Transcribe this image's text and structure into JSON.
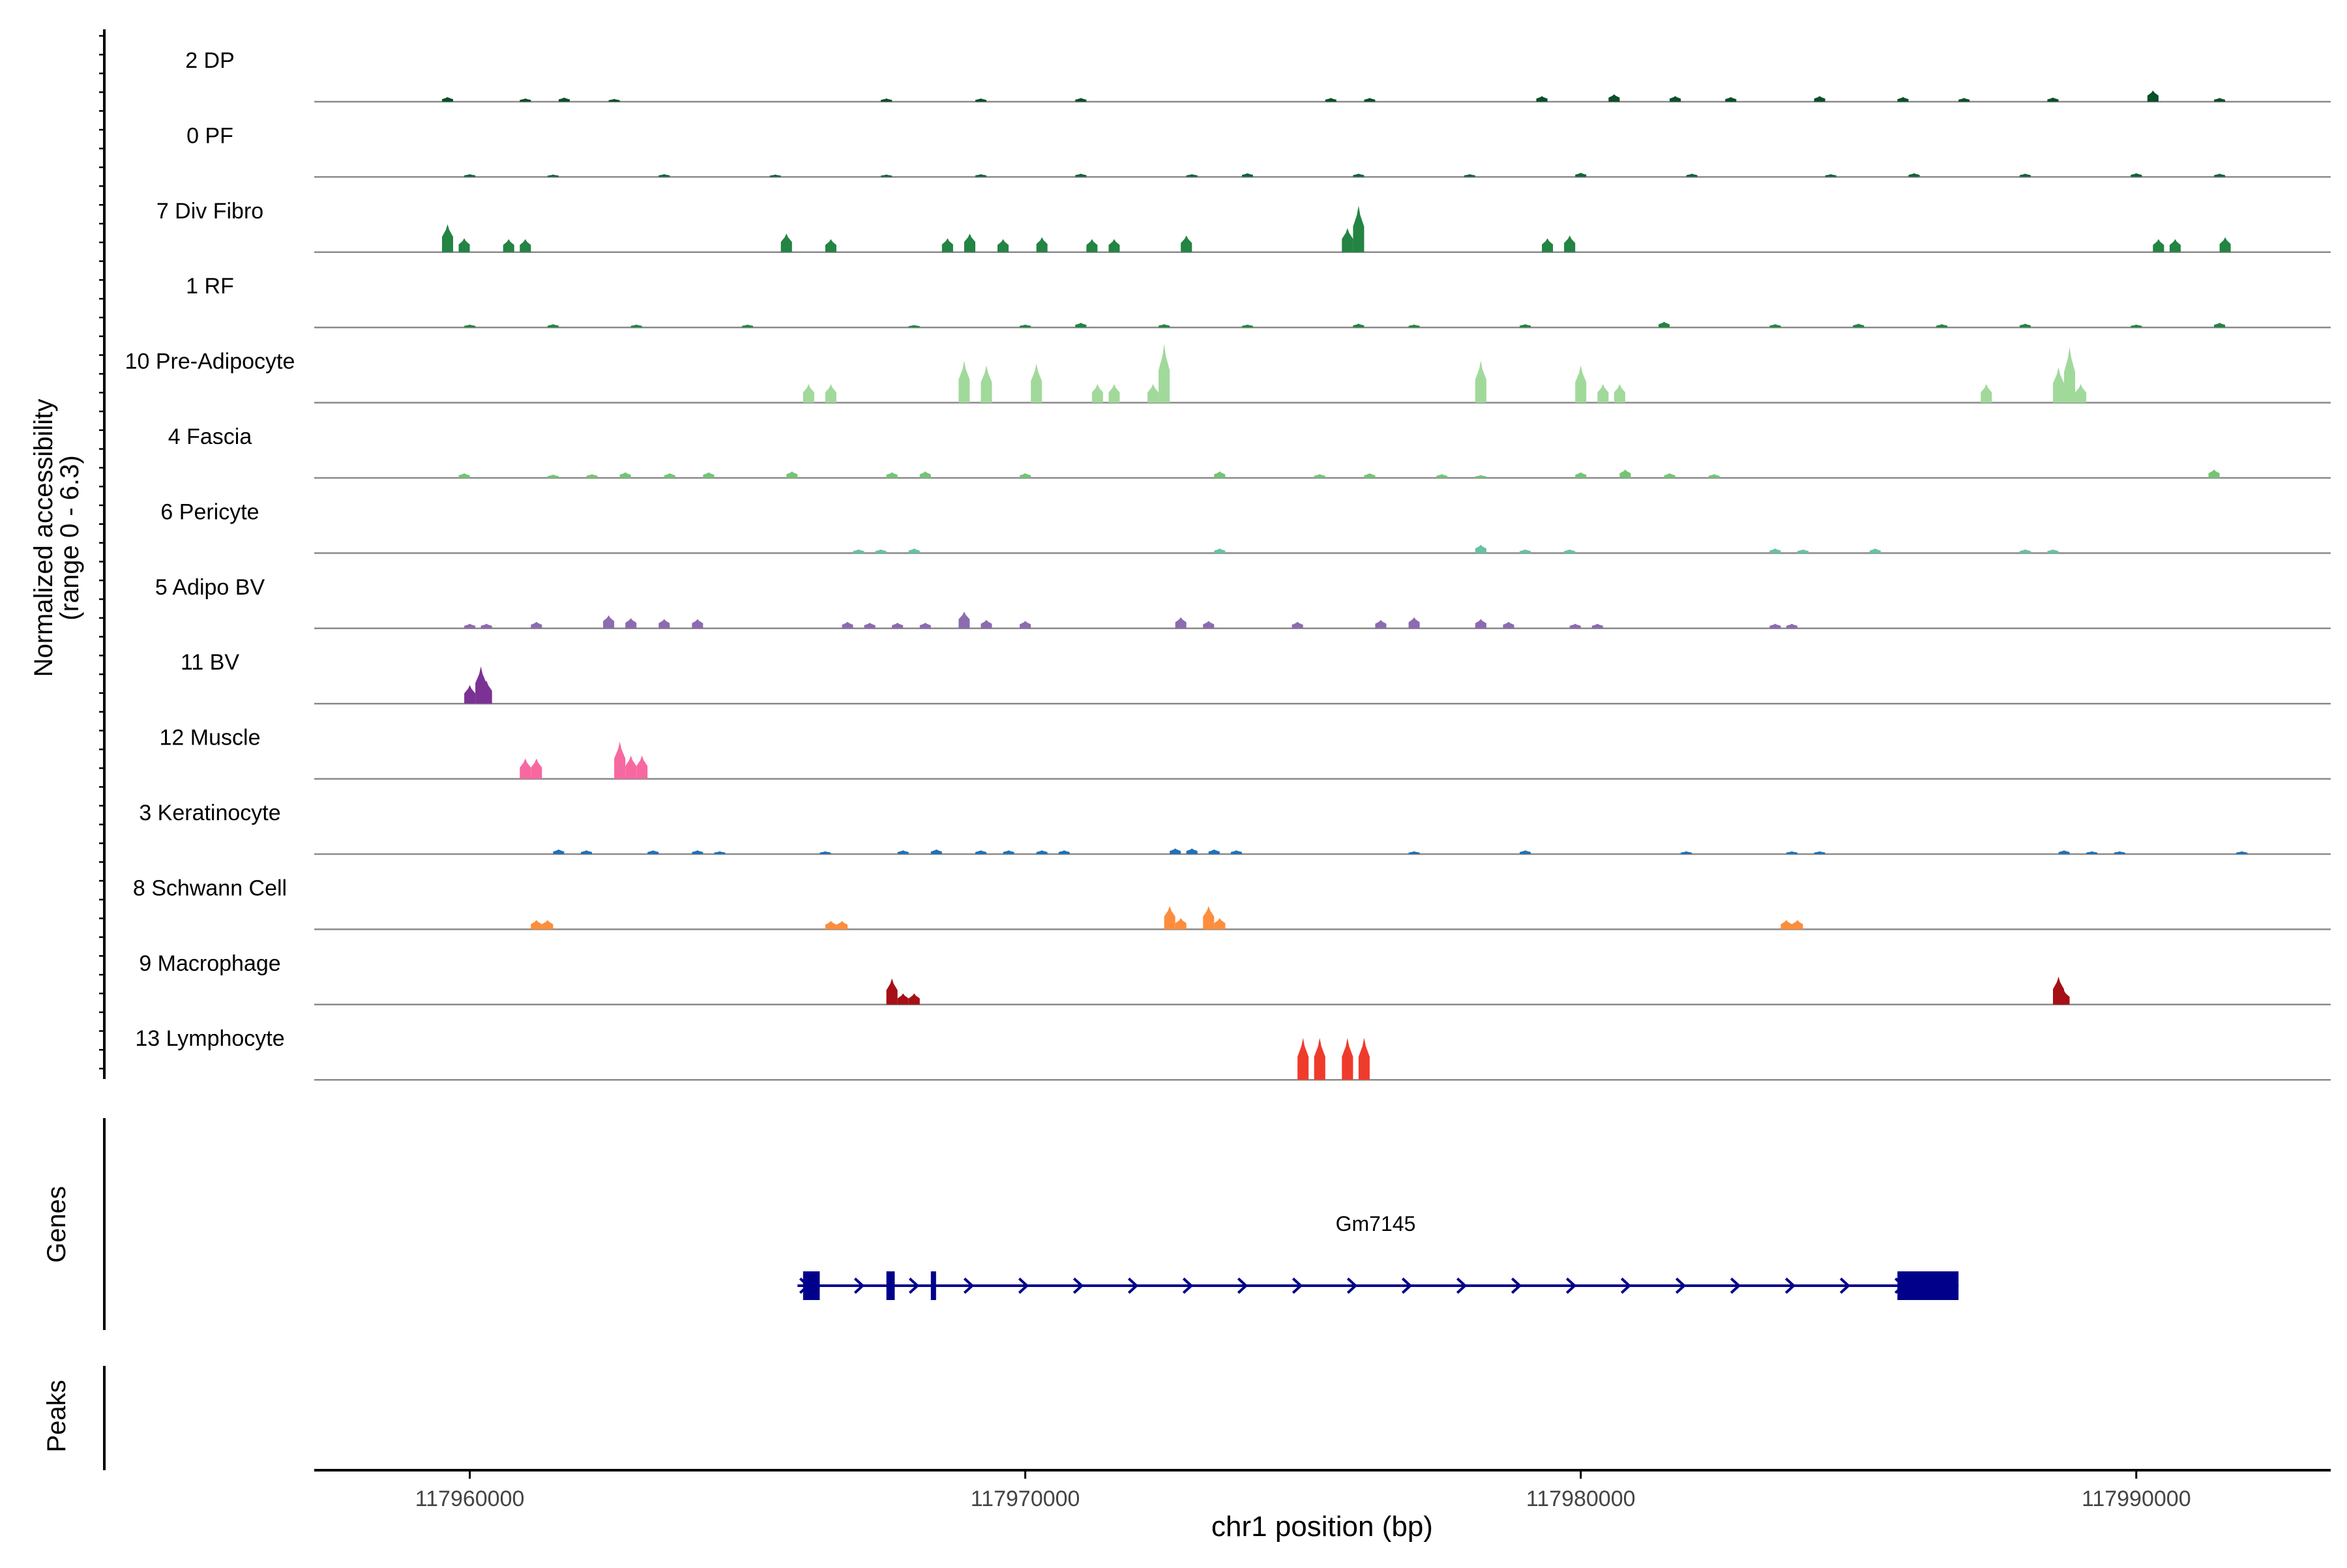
{
  "chart_data": {
    "type": "area",
    "subtype": "genome-coverage-track",
    "y_axis_title": "Normalized accessibility",
    "y_axis_range_label": "(range 0 - 6.3)",
    "ylim": [
      0,
      6.3
    ],
    "xlabel": "chr1 position (bp)",
    "xlim": [
      117957200,
      117993500
    ],
    "x_ticks": [
      117960000,
      117970000,
      117980000,
      117990000
    ],
    "x_tick_labels": [
      "117960000",
      "117970000",
      "117980000",
      "117990000"
    ],
    "genes_label": "Genes",
    "peaks_label": "Peaks",
    "series": [
      {
        "name": "2 DP",
        "color": "#0b4f2a",
        "peaks": [
          [
            117959600,
            0.5
          ],
          [
            117961000,
            0.35
          ],
          [
            117961700,
            0.45
          ],
          [
            117962600,
            0.3
          ],
          [
            117967500,
            0.35
          ],
          [
            117969200,
            0.35
          ],
          [
            117971000,
            0.4
          ],
          [
            117975500,
            0.4
          ],
          [
            117976200,
            0.4
          ],
          [
            117979300,
            0.6
          ],
          [
            117980600,
            0.8
          ],
          [
            117981700,
            0.6
          ],
          [
            117982700,
            0.5
          ],
          [
            117984300,
            0.6
          ],
          [
            117985800,
            0.5
          ],
          [
            117986900,
            0.4
          ],
          [
            117988500,
            0.45
          ],
          [
            117990300,
            1.2
          ],
          [
            117991500,
            0.4
          ]
        ]
      },
      {
        "name": "0 PF",
        "color": "#16633a",
        "peaks": [
          [
            117960000,
            0.3
          ],
          [
            117961500,
            0.25
          ],
          [
            117963500,
            0.3
          ],
          [
            117965500,
            0.25
          ],
          [
            117967500,
            0.25
          ],
          [
            117969200,
            0.3
          ],
          [
            117971000,
            0.35
          ],
          [
            117973000,
            0.3
          ],
          [
            117974000,
            0.4
          ],
          [
            117976000,
            0.35
          ],
          [
            117978000,
            0.3
          ],
          [
            117980000,
            0.45
          ],
          [
            117982000,
            0.35
          ],
          [
            117984500,
            0.3
          ],
          [
            117986000,
            0.4
          ],
          [
            117988000,
            0.35
          ],
          [
            117990000,
            0.4
          ],
          [
            117991500,
            0.35
          ]
        ]
      },
      {
        "name": "7 Div Fibro",
        "color": "#238443",
        "peaks": [
          [
            117959600,
            3.0
          ],
          [
            117959900,
            1.5
          ],
          [
            117960700,
            1.4
          ],
          [
            117961000,
            1.4
          ],
          [
            117965700,
            2.0
          ],
          [
            117966500,
            1.4
          ],
          [
            117968600,
            1.5
          ],
          [
            117969000,
            2.0
          ],
          [
            117969600,
            1.4
          ],
          [
            117970300,
            1.6
          ],
          [
            117971200,
            1.4
          ],
          [
            117971600,
            1.4
          ],
          [
            117972900,
            1.8
          ],
          [
            117975800,
            2.6
          ],
          [
            117976000,
            5.0
          ],
          [
            117979400,
            1.5
          ],
          [
            117979800,
            1.8
          ],
          [
            117990400,
            1.4
          ],
          [
            117990700,
            1.4
          ],
          [
            117991600,
            1.6
          ]
        ]
      },
      {
        "name": "1 RF",
        "color": "#238443",
        "peaks": [
          [
            117960000,
            0.3
          ],
          [
            117961500,
            0.35
          ],
          [
            117963000,
            0.3
          ],
          [
            117965000,
            0.3
          ],
          [
            117968000,
            0.25
          ],
          [
            117970000,
            0.3
          ],
          [
            117971000,
            0.5
          ],
          [
            117972500,
            0.35
          ],
          [
            117974000,
            0.3
          ],
          [
            117976000,
            0.4
          ],
          [
            117977000,
            0.3
          ],
          [
            117979000,
            0.35
          ],
          [
            117981500,
            0.6
          ],
          [
            117983500,
            0.35
          ],
          [
            117985000,
            0.4
          ],
          [
            117986500,
            0.35
          ],
          [
            117988000,
            0.4
          ],
          [
            117990000,
            0.3
          ],
          [
            117991500,
            0.5
          ]
        ]
      },
      {
        "name": "10 Pre-Adipocyte",
        "color": "#a1d99b",
        "peaks": [
          [
            117966100,
            2.0
          ],
          [
            117966500,
            2.0
          ],
          [
            117968900,
            4.5
          ],
          [
            117969300,
            4.0
          ],
          [
            117970200,
            4.2
          ],
          [
            117971300,
            2.0
          ],
          [
            117971600,
            2.0
          ],
          [
            117972300,
            2.0
          ],
          [
            117972500,
            6.3
          ],
          [
            117978200,
            4.5
          ],
          [
            117980000,
            4.0
          ],
          [
            117980400,
            2.0
          ],
          [
            117980700,
            2.0
          ],
          [
            117987300,
            2.0
          ],
          [
            117988600,
            3.8
          ],
          [
            117988800,
            6.0
          ],
          [
            117989000,
            2.0
          ]
        ]
      },
      {
        "name": "4 Fascia",
        "color": "#74c476",
        "peaks": [
          [
            117959900,
            0.5
          ],
          [
            117961500,
            0.35
          ],
          [
            117962200,
            0.4
          ],
          [
            117962800,
            0.6
          ],
          [
            117963600,
            0.5
          ],
          [
            117964300,
            0.6
          ],
          [
            117965800,
            0.7
          ],
          [
            117967600,
            0.6
          ],
          [
            117968200,
            0.7
          ],
          [
            117970000,
            0.5
          ],
          [
            117973500,
            0.7
          ],
          [
            117975300,
            0.4
          ],
          [
            117976200,
            0.5
          ],
          [
            117977500,
            0.4
          ],
          [
            117978200,
            0.3
          ],
          [
            117980000,
            0.6
          ],
          [
            117980800,
            0.9
          ],
          [
            117981600,
            0.5
          ],
          [
            117982400,
            0.4
          ],
          [
            117991400,
            0.9
          ]
        ]
      },
      {
        "name": "6 Pericyte",
        "color": "#66c2a4",
        "peaks": [
          [
            117967000,
            0.4
          ],
          [
            117967400,
            0.4
          ],
          [
            117968000,
            0.5
          ],
          [
            117973500,
            0.5
          ],
          [
            117978200,
            0.9
          ],
          [
            117979000,
            0.4
          ],
          [
            117979800,
            0.4
          ],
          [
            117983500,
            0.5
          ],
          [
            117984000,
            0.4
          ],
          [
            117985300,
            0.5
          ],
          [
            117988000,
            0.4
          ],
          [
            117988500,
            0.4
          ]
        ]
      },
      {
        "name": "5 Adipo BV",
        "color": "#8c6bb1",
        "peaks": [
          [
            117960000,
            0.5
          ],
          [
            117960300,
            0.5
          ],
          [
            117961200,
            0.7
          ],
          [
            117962500,
            1.4
          ],
          [
            117962900,
            1.1
          ],
          [
            117963500,
            1.0
          ],
          [
            117964100,
            1.0
          ],
          [
            117966800,
            0.7
          ],
          [
            117967200,
            0.6
          ],
          [
            117967700,
            0.6
          ],
          [
            117968200,
            0.6
          ],
          [
            117968900,
            1.8
          ],
          [
            117969300,
            0.9
          ],
          [
            117970000,
            0.8
          ],
          [
            117972800,
            1.2
          ],
          [
            117973300,
            0.8
          ],
          [
            117974900,
            0.7
          ],
          [
            117976400,
            0.9
          ],
          [
            117977000,
            1.2
          ],
          [
            117978200,
            1.0
          ],
          [
            117978700,
            0.7
          ],
          [
            117979900,
            0.5
          ],
          [
            117980300,
            0.5
          ],
          [
            117983500,
            0.5
          ],
          [
            117983800,
            0.5
          ]
        ]
      },
      {
        "name": "11 BV",
        "color": "#7b3294",
        "peaks": [
          [
            117960000,
            2.0
          ],
          [
            117960200,
            4.0
          ],
          [
            117960300,
            2.5
          ]
        ]
      },
      {
        "name": "12 Muscle",
        "color": "#f768a1",
        "peaks": [
          [
            117961000,
            2.2
          ],
          [
            117961200,
            2.2
          ],
          [
            117962700,
            4.0
          ],
          [
            117962900,
            2.5
          ],
          [
            117963100,
            2.5
          ]
        ]
      },
      {
        "name": "3 Keratinocyte",
        "color": "#2171b5",
        "peaks": [
          [
            117961600,
            0.5
          ],
          [
            117962100,
            0.4
          ],
          [
            117963300,
            0.4
          ],
          [
            117964100,
            0.4
          ],
          [
            117964500,
            0.3
          ],
          [
            117966400,
            0.3
          ],
          [
            117967800,
            0.4
          ],
          [
            117968400,
            0.5
          ],
          [
            117969200,
            0.4
          ],
          [
            117969700,
            0.4
          ],
          [
            117970300,
            0.4
          ],
          [
            117970700,
            0.4
          ],
          [
            117972700,
            0.6
          ],
          [
            117973000,
            0.6
          ],
          [
            117973400,
            0.5
          ],
          [
            117973800,
            0.4
          ],
          [
            117977000,
            0.3
          ],
          [
            117979000,
            0.4
          ],
          [
            117981900,
            0.3
          ],
          [
            117983800,
            0.3
          ],
          [
            117984300,
            0.3
          ],
          [
            117988700,
            0.4
          ],
          [
            117989200,
            0.3
          ],
          [
            117989700,
            0.3
          ],
          [
            117991900,
            0.3
          ]
        ]
      },
      {
        "name": "8 Schwann Cell",
        "color": "#fd8d3c",
        "peaks": [
          [
            117961200,
            1.0
          ],
          [
            117961400,
            1.0
          ],
          [
            117966500,
            0.9
          ],
          [
            117966700,
            0.9
          ],
          [
            117972600,
            2.5
          ],
          [
            117972800,
            1.2
          ],
          [
            117973300,
            2.5
          ],
          [
            117973500,
            1.2
          ],
          [
            117983700,
            1.0
          ],
          [
            117983900,
            1.0
          ]
        ]
      },
      {
        "name": "9 Macrophage",
        "color": "#a50f15",
        "peaks": [
          [
            117967600,
            2.8
          ],
          [
            117967800,
            1.2
          ],
          [
            117968000,
            1.2
          ],
          [
            117988600,
            3.0
          ],
          [
            117988700,
            1.5
          ]
        ]
      },
      {
        "name": "13 Lymphocyte",
        "color": "#ef3b2c",
        "peaks": [
          [
            117975000,
            4.5
          ],
          [
            117975300,
            4.5
          ],
          [
            117975800,
            4.5
          ],
          [
            117976100,
            4.5
          ]
        ]
      }
    ],
    "gene": {
      "name": "Gm7145",
      "color": "#00008b",
      "start": 117965900,
      "end": 117986800,
      "strand": "+",
      "exons": [
        [
          117966000,
          117966300
        ],
        [
          117967500,
          117967650
        ],
        [
          117968300,
          117968380
        ],
        [
          117985700,
          117986800
        ]
      ]
    }
  }
}
